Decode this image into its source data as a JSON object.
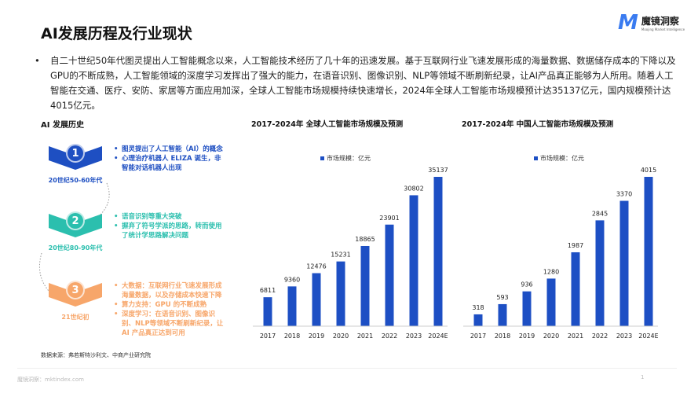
{
  "title": "AI发展历程及行业现状",
  "logo": {
    "name": "魔镜洞察",
    "subtitle": "Moojing Market Intelligence"
  },
  "intro": "自二十世纪50年代图灵提出人工智能概念以来，人工智能技术经历了几十年的迅速发展。基于互联网行业飞速发展形成的海量数据、数据储存成本的下降以及GPU的不断成熟，人工智能领域的深度学习发挥出了强大的能力，在语音识别、图像识别、NLP等领域不断刷新纪录，让AI产品真正能够为人所用。随着人工智能在交通、医疗、安防、家居等方面应用加深，全球人工智能市场规模持续快速增长，2024年全球人工智能市场规模预计达35137亿元，国内规模预计达4015亿元。",
  "history": {
    "title": "AI 发展历史",
    "stages": [
      {
        "num": "1",
        "era": "20世纪50-60年代",
        "color": "#1e4fc2",
        "points": [
          "图灵提出了人工智能（AI）的概念",
          "心理治疗机器人 ELIZA 诞生，非智能对话机器人出现"
        ]
      },
      {
        "num": "2",
        "era": "20世纪80-90年代",
        "color": "#2bbfae",
        "points": [
          "语音识别等重大突破",
          "摒弃了符号学派的思路，转而使用了统计学思路解决问题"
        ]
      },
      {
        "num": "3",
        "era": "21世纪初",
        "color": "#f7a66a",
        "points": [
          "大数据：互联网行业飞速发展形成海量数据，以及存储成本快速下降",
          "算力支持：GPU 的不断成熟",
          "深度学习：在语音识别、图像识别、NLP等领域不断刷新纪录，让 AI 产品真正达到可用"
        ]
      }
    ],
    "source": "数据来源：弗若斯特沙利文、中商产业研究院"
  },
  "chart_data": [
    {
      "type": "bar",
      "title": "2017-2024年 全球人工智能市场规模及预测",
      "categories": [
        "2017",
        "2018",
        "2019",
        "2020",
        "2021",
        "2022",
        "2023",
        "2024E"
      ],
      "series": [
        {
          "name": "市场规模：亿元",
          "values": [
            6811,
            9360,
            12476,
            15231,
            18865,
            23901,
            30802,
            35137
          ]
        }
      ],
      "color": "#1d4fc4",
      "legend": "top-left",
      "grid": false
    },
    {
      "type": "bar",
      "title": "2017-2024年 中国人工智能市场规模及预测",
      "categories": [
        "2017",
        "2018",
        "2019",
        "2020",
        "2021",
        "2022",
        "2023",
        "2024E"
      ],
      "series": [
        {
          "name": "市场规模：亿元",
          "values": [
            318,
            593,
            936,
            1280,
            1987,
            2845,
            3370,
            4015
          ]
        }
      ],
      "color": "#1d4fc4",
      "legend": "top-left",
      "grid": false
    }
  ],
  "footer": {
    "site": "魔镜洞察：mktindex.com",
    "page": "1"
  }
}
